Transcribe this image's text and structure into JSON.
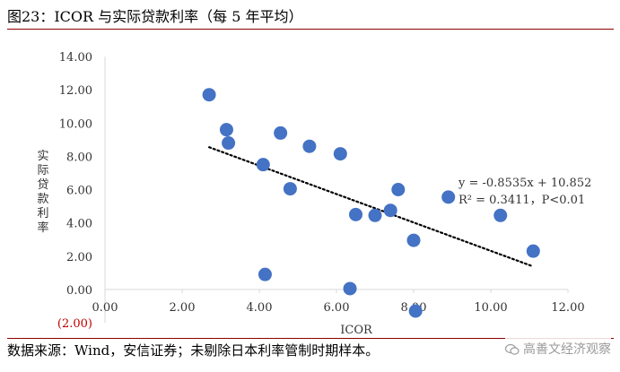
{
  "figure_title": "图23：ICOR 与实际贷款利率（每 5 年平均）",
  "source_note": "数据来源：Wind，安信证券；未剔除日本利率管制时期样本。",
  "watermark_text": "高善文经济观察",
  "colors": {
    "point": "#4472c4",
    "negative_tick": "#c00000",
    "rule": "#8b0000",
    "axis": "#d9d9d9",
    "trend": "#000000"
  },
  "chart_data": {
    "type": "scatter",
    "title": "",
    "xlabel": "ICOR",
    "ylabel": "实际贷款利率",
    "xlim": [
      0,
      12
    ],
    "ylim": [
      -2,
      14
    ],
    "x_ticks": [
      "0.00",
      "2.00",
      "4.00",
      "6.00",
      "8.00",
      "10.00",
      "12.00"
    ],
    "y_ticks": [
      "(2.00)",
      "0.00",
      "2.00",
      "4.00",
      "6.00",
      "8.00",
      "10.00",
      "12.00",
      "14.00"
    ],
    "grid": false,
    "points": [
      {
        "x": 2.7,
        "y": 11.7
      },
      {
        "x": 3.15,
        "y": 9.6
      },
      {
        "x": 3.2,
        "y": 8.8
      },
      {
        "x": 4.1,
        "y": 7.5
      },
      {
        "x": 4.15,
        "y": 0.9
      },
      {
        "x": 4.55,
        "y": 9.4
      },
      {
        "x": 4.8,
        "y": 6.05
      },
      {
        "x": 5.3,
        "y": 8.6
      },
      {
        "x": 6.1,
        "y": 8.15
      },
      {
        "x": 6.35,
        "y": 0.05
      },
      {
        "x": 6.5,
        "y": 4.5
      },
      {
        "x": 7.0,
        "y": 4.45
      },
      {
        "x": 7.4,
        "y": 4.75
      },
      {
        "x": 7.6,
        "y": 6.0
      },
      {
        "x": 8.0,
        "y": 2.95
      },
      {
        "x": 8.05,
        "y": -1.3
      },
      {
        "x": 8.9,
        "y": 5.55
      },
      {
        "x": 10.25,
        "y": 4.45
      },
      {
        "x": 11.1,
        "y": 2.3
      }
    ],
    "trendline": {
      "type": "linear",
      "slope": -0.8535,
      "intercept": 10.852,
      "x_range": [
        2.7,
        11.1
      ]
    },
    "annotations": [
      "y = -0.8535x + 10.852",
      "R² = 0.3411，P<0.01"
    ]
  }
}
